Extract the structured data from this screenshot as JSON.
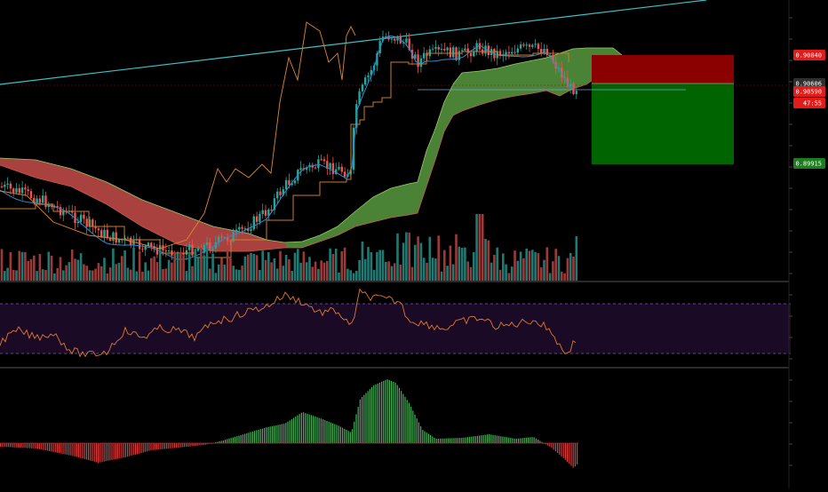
{
  "colors": {
    "background": "#000000",
    "bull": "#26a69a",
    "bear": "#ef5350",
    "vol_bull": "#1f7a73",
    "vol_bear": "#9c3a3a",
    "tenkan": "#2a8cd6",
    "kijun": "#c97d2a",
    "lagging": "#e0872e",
    "cloud_green": "#5fa845",
    "cloud_red": "#d9544f",
    "trendline": "#3cc1c4",
    "rsi_line": "#e07a2e",
    "rsi_band": "#1a0a26",
    "osc_pos": "#43b35a",
    "osc_neg": "#e33a3a",
    "stop_zone": "#8b0000",
    "target_zone": "#006400",
    "panel_border": "#555555"
  },
  "price_scale": {
    "labels": [
      {
        "key": "stop",
        "text": "0.90840",
        "bg": "#e21b1b"
      },
      {
        "key": "current",
        "text": "0.90606",
        "bg": "#2f2f2f"
      },
      {
        "key": "entry",
        "text": "0.90590",
        "bg": "#e21b1b"
      },
      {
        "key": "countdown",
        "text": "47:55",
        "bg": "#e21b1b"
      },
      {
        "key": "target",
        "text": "0.89915",
        "bg": "#1e7d1e"
      }
    ]
  },
  "chart_data": [
    {
      "type": "candlestick",
      "pane": "price",
      "price_levels": {
        "stop": 0.9084,
        "current": 0.90606,
        "entry": 0.9059,
        "target": 0.89915
      },
      "indicators": [
        "ichimoku_cloud",
        "trendline",
        "volume"
      ],
      "countdown": "47:55"
    },
    {
      "type": "line",
      "pane": "rsi",
      "band_dashed": true
    },
    {
      "type": "bar",
      "pane": "oscillator"
    }
  ]
}
